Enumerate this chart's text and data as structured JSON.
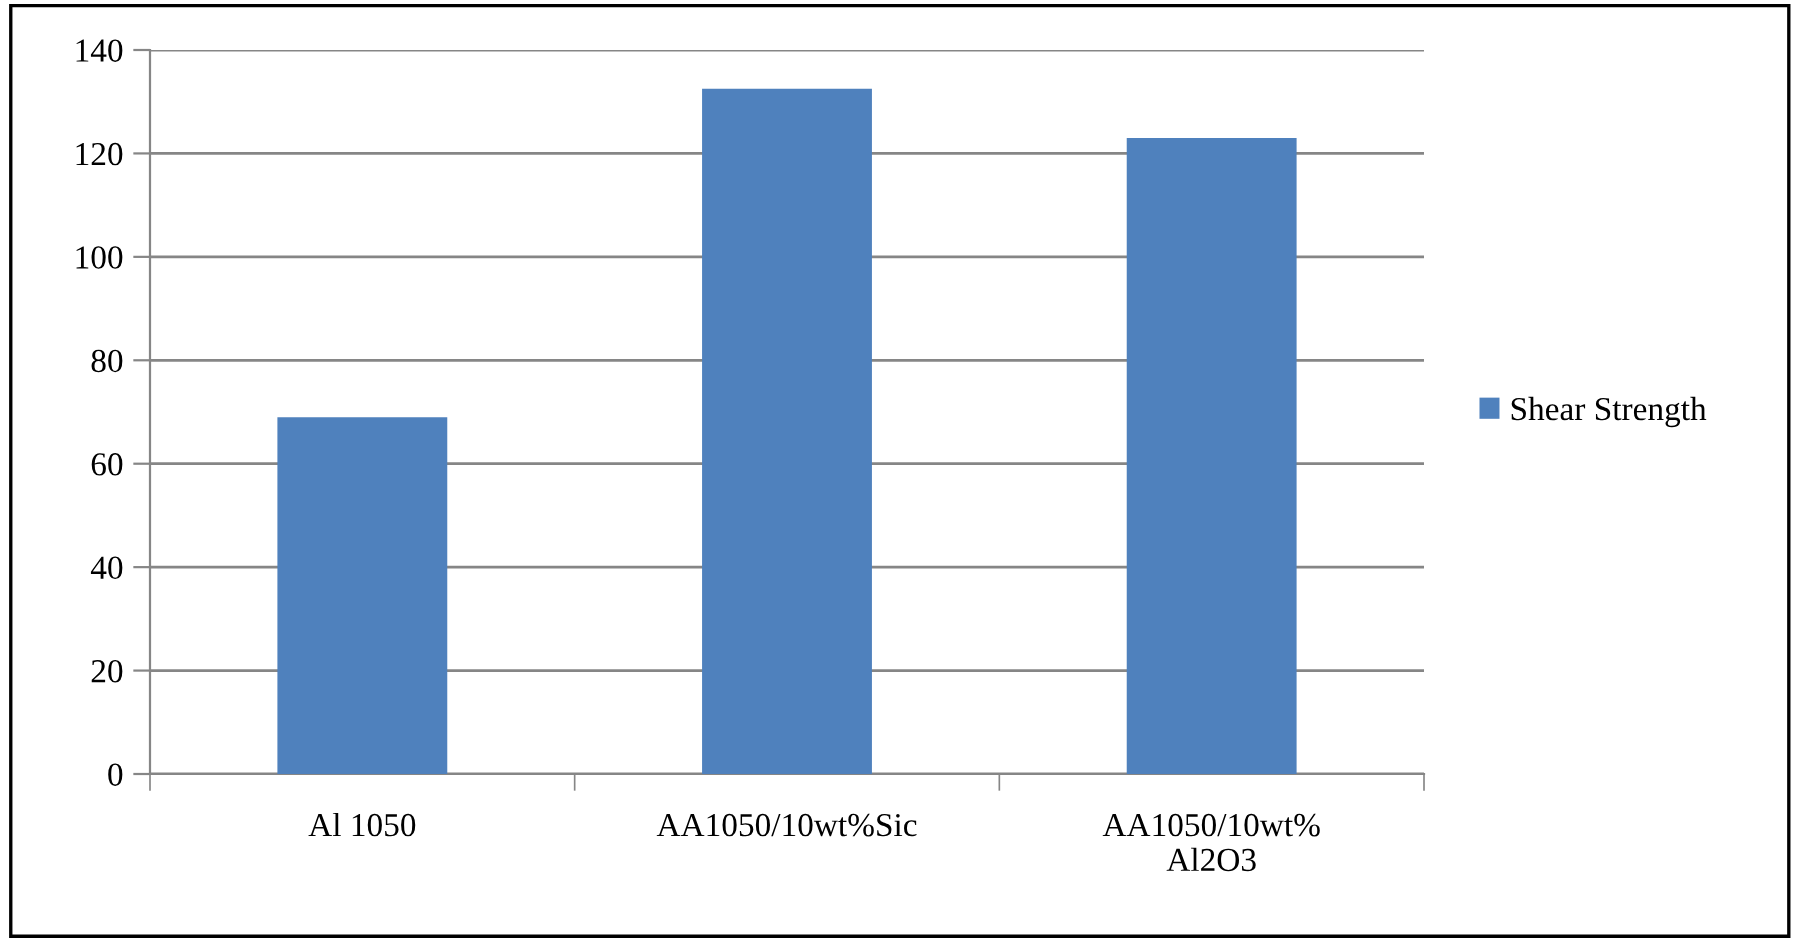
{
  "chart_data": {
    "type": "bar",
    "categories": [
      "Al 1050",
      "AA1050/10wt%Sic",
      "AA1050/10wt%\nAl2O3"
    ],
    "series": [
      {
        "name": "Shear Strength",
        "color": "#4f81bd",
        "values": [
          69,
          132.5,
          123
        ]
      }
    ],
    "ylim": [
      0,
      140
    ],
    "yticks": [
      0,
      20,
      40,
      60,
      80,
      100,
      120,
      140
    ],
    "grid": "y",
    "legend": "right"
  }
}
